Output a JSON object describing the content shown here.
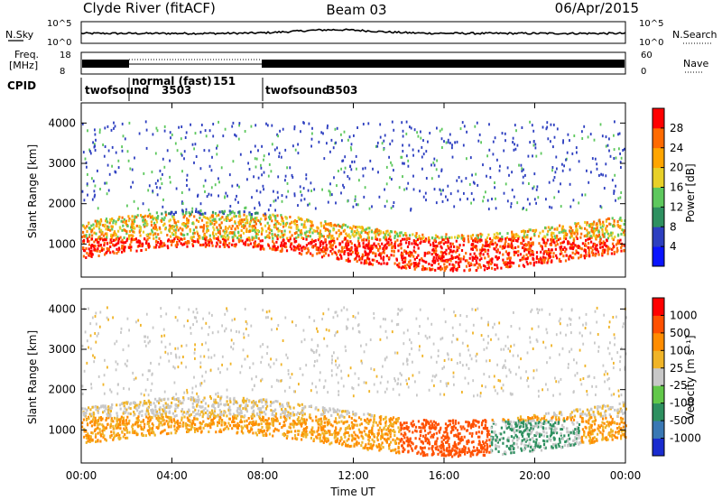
{
  "header": {
    "station": "Clyde River (fitACF)",
    "beam": "Beam 03",
    "date": "06/Apr/2015"
  },
  "noise_panel": {
    "left_label": "N.Sky",
    "right_label": "N.Search",
    "left_ticks": [
      "10^5",
      "10^0"
    ],
    "right_ticks": [
      "10^5",
      "10^0"
    ]
  },
  "freq_panel": {
    "left_label_1": "Freq.",
    "left_label_2": "[MHz]",
    "right_label": "Nave",
    "left_ticks": [
      "18",
      "8"
    ],
    "right_ticks": [
      "60",
      "0"
    ]
  },
  "cpid_panel": {
    "label": "CPID",
    "modes": [
      {
        "name": "twofsound",
        "id": "3503",
        "start_hour": 0.0
      },
      {
        "name": "normal (fast)",
        "id": "151",
        "start_hour": 1.97
      },
      {
        "name": "twofsound",
        "id": "3503",
        "start_hour": 7.92
      }
    ]
  },
  "x_axis": {
    "label": "Time UT",
    "ticks": [
      "00:00",
      "04:00",
      "08:00",
      "12:00",
      "16:00",
      "20:00",
      "00:00"
    ],
    "range_hours": [
      0,
      24
    ]
  },
  "chart_data": [
    {
      "type": "heatmap",
      "name": "power",
      "ylabel": "Slant Range [km]",
      "yticks": [
        1000,
        2000,
        3000,
        4000
      ],
      "ylim": [
        180,
        4500
      ],
      "colorbar_label": "Power [dB]",
      "colorbar_ticks": [
        4,
        8,
        12,
        16,
        20,
        24,
        28
      ],
      "colorbar_colors": [
        "#0a14ff",
        "#2d3fc0",
        "#2e9060",
        "#5dc85d",
        "#e8d028",
        "#ffa500",
        "#ff6a00",
        "#ff0000"
      ]
    },
    {
      "type": "heatmap",
      "name": "velocity",
      "ylabel": "Slant Range [km]",
      "yticks": [
        1000,
        2000,
        3000,
        4000
      ],
      "ylim": [
        180,
        4500
      ],
      "colorbar_label": "Velocity [m s⁻¹]",
      "colorbar_ticks": [
        "1000",
        "500",
        "100",
        "25",
        "-25",
        "-100",
        "-500",
        "-1000"
      ],
      "colorbar_colors": [
        "#1a2ccf",
        "#3a78b4",
        "#2e9060",
        "#62c84a",
        "#c8c8c8",
        "#f0b428",
        "#ff8c00",
        "#ff5000",
        "#ff0000"
      ]
    }
  ]
}
